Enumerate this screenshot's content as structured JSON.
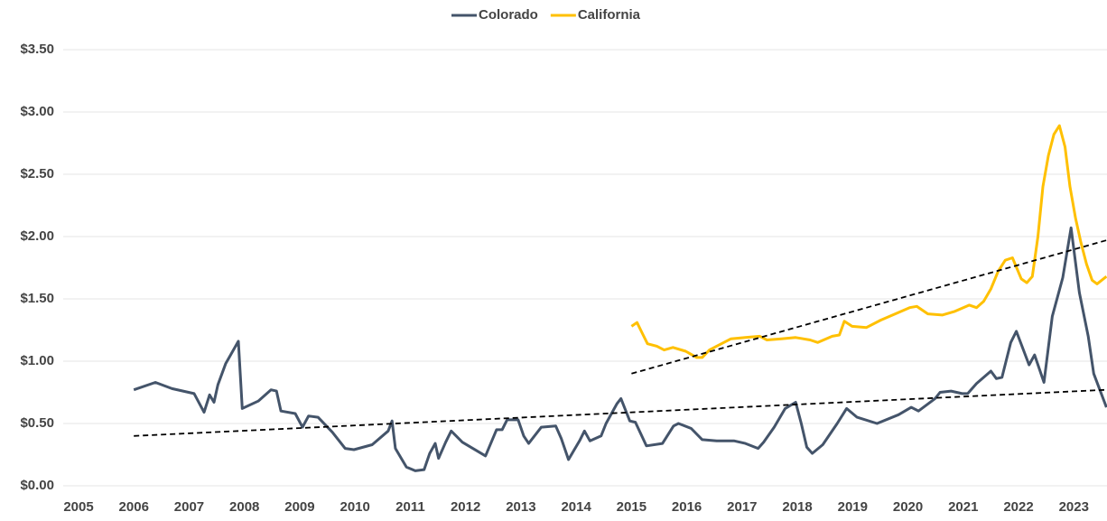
{
  "chart_data": {
    "type": "line",
    "series": [
      {
        "name": "Colorado",
        "color": "#44546a",
        "x": [
          2006.0,
          2006.39,
          2006.69,
          2007.09,
          2007.27,
          2007.37,
          2007.45,
          2007.52,
          2007.66,
          2007.89,
          2007.96,
          2008.25,
          2008.48,
          2008.58,
          2008.66,
          2008.92,
          2009.05,
          2009.16,
          2009.33,
          2009.59,
          2009.82,
          2009.98,
          2010.31,
          2010.6,
          2010.67,
          2010.73,
          2010.93,
          2011.09,
          2011.25,
          2011.35,
          2011.45,
          2011.51,
          2011.64,
          2011.74,
          2011.94,
          2012.13,
          2012.36,
          2012.56,
          2012.66,
          2012.75,
          2012.95,
          2013.05,
          2013.14,
          2013.37,
          2013.63,
          2013.73,
          2013.86,
          2014.06,
          2014.15,
          2014.25,
          2014.45,
          2014.54,
          2014.74,
          2014.81,
          2014.97,
          2015.07,
          2015.27,
          2015.56,
          2015.76,
          2015.85,
          2016.08,
          2016.28,
          2016.54,
          2016.86,
          2017.06,
          2017.29,
          2017.39,
          2017.58,
          2017.78,
          2017.97,
          2018.07,
          2018.17,
          2018.27,
          2018.46,
          2018.72,
          2018.89,
          2019.08,
          2019.44,
          2019.83,
          2020.06,
          2020.19,
          2020.49,
          2020.58,
          2020.78,
          2020.98,
          2021.08,
          2021.24,
          2021.5,
          2021.6,
          2021.7,
          2021.86,
          2021.96,
          2022.19,
          2022.29,
          2022.46,
          2022.61,
          2022.8,
          2022.95,
          2023.1,
          2023.26,
          2023.36,
          2023.59
        ],
        "values": [
          0.77,
          0.83,
          0.78,
          0.74,
          0.59,
          0.73,
          0.67,
          0.81,
          0.98,
          1.16,
          0.62,
          0.68,
          0.77,
          0.76,
          0.6,
          0.58,
          0.47,
          0.56,
          0.55,
          0.43,
          0.3,
          0.29,
          0.33,
          0.44,
          0.52,
          0.3,
          0.15,
          0.12,
          0.13,
          0.26,
          0.34,
          0.22,
          0.35,
          0.44,
          0.35,
          0.3,
          0.24,
          0.45,
          0.45,
          0.53,
          0.53,
          0.4,
          0.34,
          0.47,
          0.48,
          0.38,
          0.21,
          0.36,
          0.44,
          0.36,
          0.4,
          0.5,
          0.66,
          0.7,
          0.52,
          0.51,
          0.32,
          0.34,
          0.48,
          0.5,
          0.46,
          0.37,
          0.36,
          0.36,
          0.34,
          0.3,
          0.35,
          0.47,
          0.62,
          0.67,
          0.5,
          0.31,
          0.26,
          0.33,
          0.5,
          0.62,
          0.55,
          0.5,
          0.57,
          0.63,
          0.6,
          0.7,
          0.75,
          0.76,
          0.74,
          0.74,
          0.82,
          0.92,
          0.86,
          0.87,
          1.15,
          1.24,
          0.97,
          1.05,
          0.83,
          1.36,
          1.67,
          2.07,
          1.55,
          1.2,
          0.9,
          0.63
        ]
      },
      {
        "name": "California",
        "color": "#ffc000",
        "x": [
          2015.0,
          2015.1,
          2015.2,
          2015.29,
          2015.46,
          2015.59,
          2015.75,
          2015.98,
          2016.18,
          2016.28,
          2016.41,
          2016.67,
          2016.8,
          2017.06,
          2017.32,
          2017.45,
          2017.71,
          2017.97,
          2018.23,
          2018.37,
          2018.63,
          2018.76,
          2018.85,
          2018.99,
          2019.25,
          2019.51,
          2019.77,
          2020.03,
          2020.16,
          2020.36,
          2020.62,
          2020.85,
          2021.11,
          2021.24,
          2021.37,
          2021.5,
          2021.63,
          2021.76,
          2021.89,
          2022.05,
          2022.15,
          2022.25,
          2022.35,
          2022.44,
          2022.54,
          2022.64,
          2022.74,
          2022.84,
          2022.93,
          2023.03,
          2023.13,
          2023.23,
          2023.33,
          2023.42,
          2023.59
        ],
        "values": [
          1.28,
          1.31,
          1.22,
          1.14,
          1.12,
          1.09,
          1.11,
          1.08,
          1.03,
          1.03,
          1.09,
          1.15,
          1.18,
          1.19,
          1.2,
          1.17,
          1.18,
          1.19,
          1.17,
          1.15,
          1.2,
          1.21,
          1.32,
          1.28,
          1.27,
          1.33,
          1.38,
          1.43,
          1.44,
          1.38,
          1.37,
          1.4,
          1.45,
          1.43,
          1.48,
          1.58,
          1.72,
          1.81,
          1.83,
          1.66,
          1.63,
          1.68,
          2.0,
          2.4,
          2.65,
          2.82,
          2.89,
          2.72,
          2.4,
          2.15,
          1.95,
          1.78,
          1.65,
          1.62,
          1.68
        ]
      }
    ],
    "trendlines": [
      {
        "color": "#000000",
        "x": [
          2006.0,
          2023.59
        ],
        "values": [
          0.4,
          0.77
        ]
      },
      {
        "color": "#000000",
        "x": [
          2015.0,
          2023.59
        ],
        "values": [
          0.9,
          1.97
        ]
      }
    ],
    "trendline_style": "dashed",
    "xlim": [
      2005,
      2023.6
    ],
    "xticks": [
      2005,
      2006,
      2007,
      2008,
      2009,
      2010,
      2011,
      2012,
      2013,
      2014,
      2015,
      2016,
      2017,
      2018,
      2019,
      2020,
      2021,
      2022,
      2023
    ],
    "ylim": [
      0,
      3.5
    ],
    "yticks": [
      {
        "value": 0,
        "label": "$0.00"
      },
      {
        "value": 0.5,
        "label": "$0.50"
      },
      {
        "value": 1,
        "label": "$1.00"
      },
      {
        "value": 1.5,
        "label": "$1.50"
      },
      {
        "value": 2,
        "label": "$2.00"
      },
      {
        "value": 2.5,
        "label": "$2.50"
      },
      {
        "value": 3,
        "label": "$3.00"
      },
      {
        "value": 3.5,
        "label": "$3.50"
      }
    ],
    "grid": true,
    "legend": "top"
  }
}
